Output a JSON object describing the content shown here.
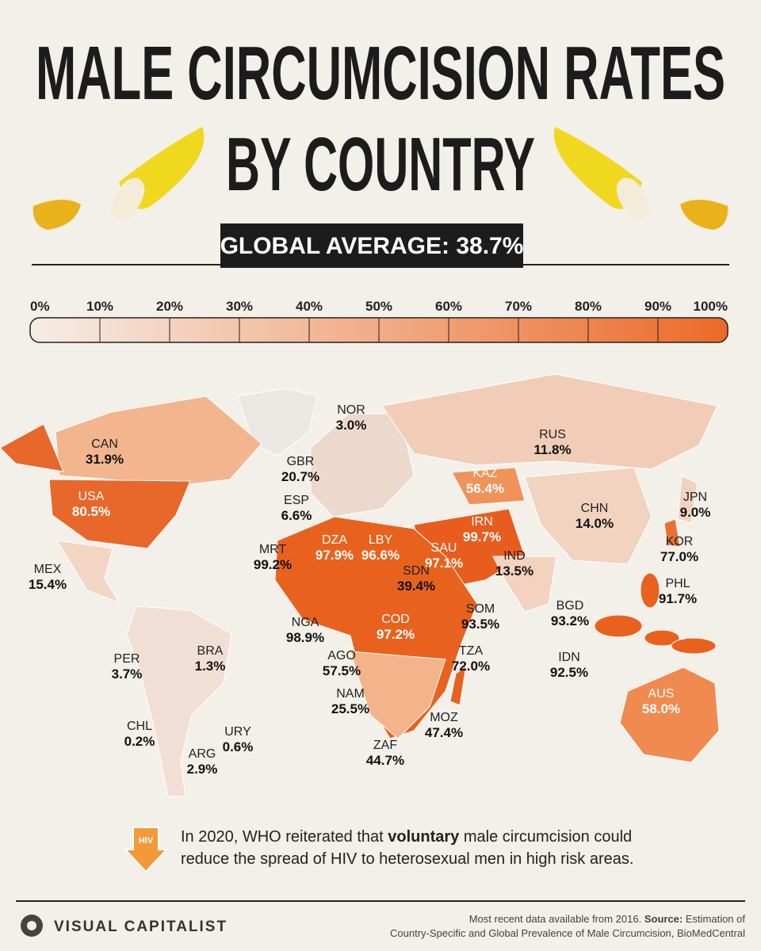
{
  "header": {
    "title_line1": "MALE CIRCUMCISION RATES",
    "title_line2": "BY COUNTRY",
    "global_average": "GLOBAL AVERAGE: 38.7%"
  },
  "scale": {
    "labels": [
      "0%",
      "10%",
      "20%",
      "30%",
      "40%",
      "50%",
      "60%",
      "70%",
      "80%",
      "90%",
      "100%"
    ]
  },
  "countries": [
    {
      "code": "NOR",
      "value": "3.0%"
    },
    {
      "code": "CAN",
      "value": "31.9%"
    },
    {
      "code": "RUS",
      "value": "11.8%"
    },
    {
      "code": "GBR",
      "value": "20.7%"
    },
    {
      "code": "KAZ",
      "value": "56.4%"
    },
    {
      "code": "ESP",
      "value": "6.6%"
    },
    {
      "code": "USA",
      "value": "80.5%"
    },
    {
      "code": "JPN",
      "value": "9.0%"
    },
    {
      "code": "CHN",
      "value": "14.0%"
    },
    {
      "code": "IRN",
      "value": "99.7%"
    },
    {
      "code": "DZA",
      "value": "97.9%"
    },
    {
      "code": "LBY",
      "value": "96.6%"
    },
    {
      "code": "SAU",
      "value": "97.1%"
    },
    {
      "code": "MRT",
      "value": "99.2%"
    },
    {
      "code": "KOR",
      "value": "77.0%"
    },
    {
      "code": "IND",
      "value": "13.5%"
    },
    {
      "code": "MEX",
      "value": "15.4%"
    },
    {
      "code": "SDN",
      "value": "39.4%"
    },
    {
      "code": "PHL",
      "value": "91.7%"
    },
    {
      "code": "BGD",
      "value": "93.2%"
    },
    {
      "code": "SOM",
      "value": "93.5%"
    },
    {
      "code": "NGA",
      "value": "98.9%"
    },
    {
      "code": "COD",
      "value": "97.2%"
    },
    {
      "code": "BRA",
      "value": "1.3%"
    },
    {
      "code": "IDN",
      "value": "92.5%"
    },
    {
      "code": "PER",
      "value": "3.7%"
    },
    {
      "code": "AGO",
      "value": "57.5%"
    },
    {
      "code": "TZA",
      "value": "72.0%"
    },
    {
      "code": "AUS",
      "value": "58.0%"
    },
    {
      "code": "NAM",
      "value": "25.5%"
    },
    {
      "code": "URY",
      "value": "0.6%"
    },
    {
      "code": "MOZ",
      "value": "47.4%"
    },
    {
      "code": "CHL",
      "value": "0.2%"
    },
    {
      "code": "ZAF",
      "value": "44.7%"
    },
    {
      "code": "ARG",
      "value": "2.9%"
    }
  ],
  "note": {
    "icon": "HIV",
    "line1_before": "In 2020, WHO reiterated that ",
    "line1_bold": "voluntary",
    "line1_after": " male circumcision could",
    "line2": "reduce the spread of HIV to heterosexual men in high risk areas."
  },
  "footer": {
    "brand": "VISUAL CAPITALIST",
    "source_line1_before": "Most recent data available from 2016. ",
    "source_bold": "Source:",
    "source_line1_after": " Estimation of",
    "source_line2": "Country-Specific and Global Prevalence of Male Circumcision, BioMedCentral"
  }
}
